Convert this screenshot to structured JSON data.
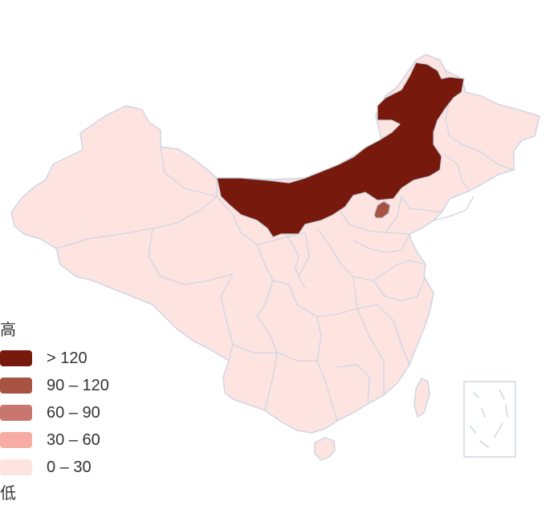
{
  "legend": {
    "high_label": "高",
    "low_label": "低",
    "items": [
      {
        "label": "> 120",
        "color": "#771a0d"
      },
      {
        "label": "90 – 120",
        "color": "#a75344"
      },
      {
        "label": "60 – 90",
        "color": "#c97670"
      },
      {
        "label": "30 – 60",
        "color": "#f6aba4"
      },
      {
        "label": "0 – 30",
        "color": "#fde4e1"
      }
    ]
  },
  "map": {
    "default_fill": "#fde4e1",
    "border_color": "#cfd5e3",
    "highlight_regions": [
      {
        "region": "inner-mongolia",
        "bin": "> 120"
      },
      {
        "region": "beijing",
        "bin": "90 – 120"
      }
    ]
  }
}
